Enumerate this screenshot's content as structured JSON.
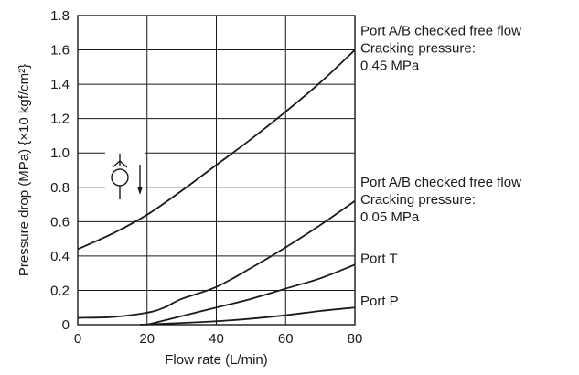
{
  "chart_data": {
    "type": "line",
    "xlabel": "Flow rate (L/min)",
    "ylabel": "Pressure drop (MPa) {×10 kgf/cm²}",
    "xlim": [
      0,
      80
    ],
    "ylim": [
      0,
      1.8
    ],
    "x_ticks": [
      "0",
      "20",
      "40",
      "60",
      "80"
    ],
    "y_ticks": [
      "0",
      "0.2",
      "0.4",
      "0.6",
      "0.8",
      "1.0",
      "1.2",
      "1.4",
      "1.6",
      "1.8"
    ],
    "grid": true,
    "series": [
      {
        "label_lines": [
          "Port A/B checked free flow",
          "Cracking pressure:",
          "0.45 MPa"
        ],
        "x": [
          0,
          10,
          20,
          30,
          40,
          50,
          60,
          70,
          80
        ],
        "y": [
          0.44,
          0.53,
          0.64,
          0.78,
          0.93,
          1.08,
          1.24,
          1.41,
          1.6
        ]
      },
      {
        "label_lines": [
          "Port A/B checked free flow",
          "Cracking pressure:",
          "0.05 MPa"
        ],
        "x": [
          0,
          10,
          20,
          25,
          30,
          40,
          50,
          60,
          70,
          80
        ],
        "y": [
          0.04,
          0.045,
          0.07,
          0.1,
          0.15,
          0.22,
          0.33,
          0.45,
          0.58,
          0.72
        ]
      },
      {
        "label_lines": [
          "Port T"
        ],
        "x": [
          20,
          30,
          40,
          50,
          60,
          70,
          80
        ],
        "y": [
          0.0,
          0.05,
          0.1,
          0.15,
          0.21,
          0.27,
          0.35
        ]
      },
      {
        "label_lines": [
          "Port P"
        ],
        "x": [
          18,
          30,
          40,
          50,
          60,
          70,
          80
        ],
        "y": [
          0.0,
          0.01,
          0.02,
          0.035,
          0.055,
          0.08,
          0.1
        ]
      }
    ],
    "symbol": "check-valve-icon"
  }
}
